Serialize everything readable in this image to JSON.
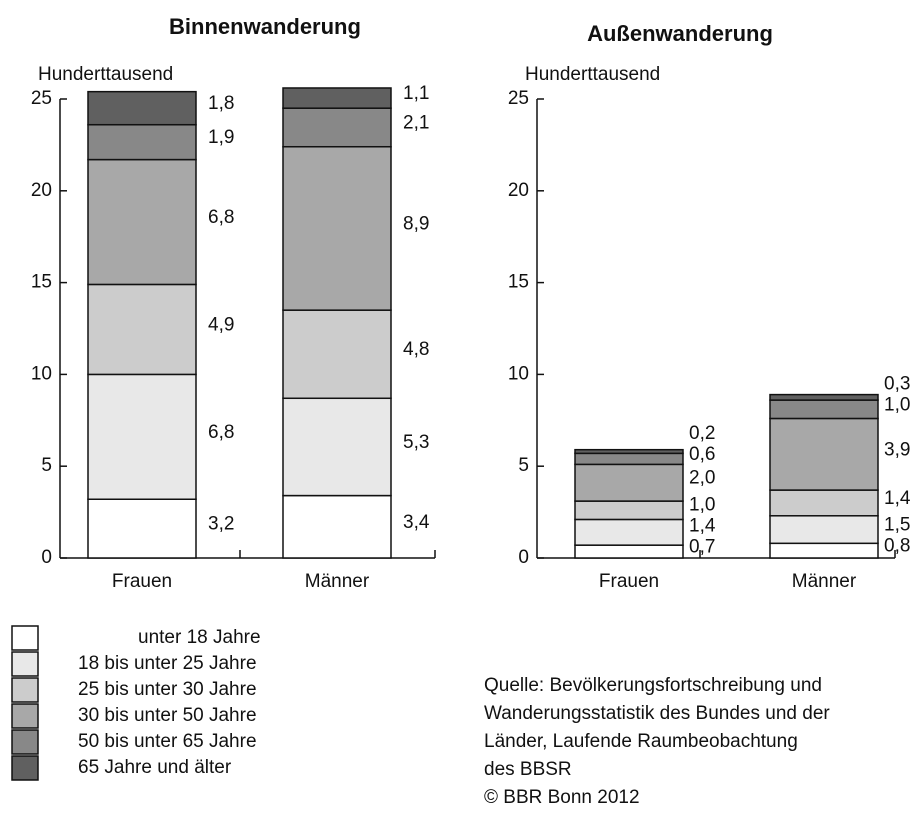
{
  "chart_data": [
    {
      "type": "stacked_bar",
      "title": "Binnenwanderung",
      "y_label": "Hunderttausend",
      "categories": [
        "Frauen",
        "Männer"
      ],
      "ylim": [
        0,
        25
      ],
      "yticks": [
        0,
        5,
        10,
        15,
        20,
        25
      ],
      "series": [
        {
          "name": "unter 18 Jahre",
          "color": "#ffffff",
          "values": [
            3.2,
            3.4
          ],
          "value_labels": [
            "3,2",
            "3,4"
          ]
        },
        {
          "name": "18 bis unter 25 Jahre",
          "color": "#e8e8e8",
          "values": [
            6.8,
            5.3
          ],
          "value_labels": [
            "6,8",
            "5,3"
          ]
        },
        {
          "name": "25 bis unter 30 Jahre",
          "color": "#cccccc",
          "values": [
            4.9,
            4.8
          ],
          "value_labels": [
            "4,9",
            "4,8"
          ]
        },
        {
          "name": "30 bis unter 50 Jahre",
          "color": "#a8a8a8",
          "values": [
            6.8,
            8.9
          ],
          "value_labels": [
            "6,8",
            "8,9"
          ]
        },
        {
          "name": "50 bis unter 65 Jahre",
          "color": "#888888",
          "values": [
            1.9,
            2.1
          ],
          "value_labels": [
            "1,9",
            "2,1"
          ]
        },
        {
          "name": "65 Jahre und älter",
          "color": "#606060",
          "values": [
            1.8,
            1.1
          ],
          "value_labels": [
            "1,8",
            "1,1"
          ]
        }
      ]
    },
    {
      "type": "stacked_bar",
      "title": "Außenwanderung",
      "y_label": "Hunderttausend",
      "categories": [
        "Frauen",
        "Männer"
      ],
      "ylim": [
        0,
        25
      ],
      "yticks": [
        0,
        5,
        10,
        15,
        20,
        25
      ],
      "series": [
        {
          "color": "#ffffff",
          "values": [
            0.7,
            0.8
          ],
          "value_labels": [
            "0,7",
            "0,8"
          ]
        },
        {
          "color": "#e8e8e8",
          "values": [
            1.4,
            1.5
          ],
          "value_labels": [
            "1,4",
            "1,5"
          ]
        },
        {
          "color": "#cccccc",
          "values": [
            1.0,
            1.4
          ],
          "value_labels": [
            "1,0",
            "1,4"
          ]
        },
        {
          "color": "#a8a8a8",
          "values": [
            2.0,
            3.9
          ],
          "value_labels": [
            "2,0",
            "3,9"
          ]
        },
        {
          "color": "#888888",
          "values": [
            0.6,
            1.0
          ],
          "value_labels": [
            "0,6",
            "1,0"
          ]
        },
        {
          "color": "#606060",
          "values": [
            0.2,
            0.3
          ],
          "value_labels": [
            "0,2",
            "0,3"
          ]
        }
      ]
    }
  ],
  "source": [
    "Quelle: Bevölkerungsfortschreibung und",
    "Wanderungsstatistik des Bundes und der",
    "Länder, Laufende Raumbeobachtung",
    "des BBSR",
    "© BBR Bonn 2012"
  ]
}
